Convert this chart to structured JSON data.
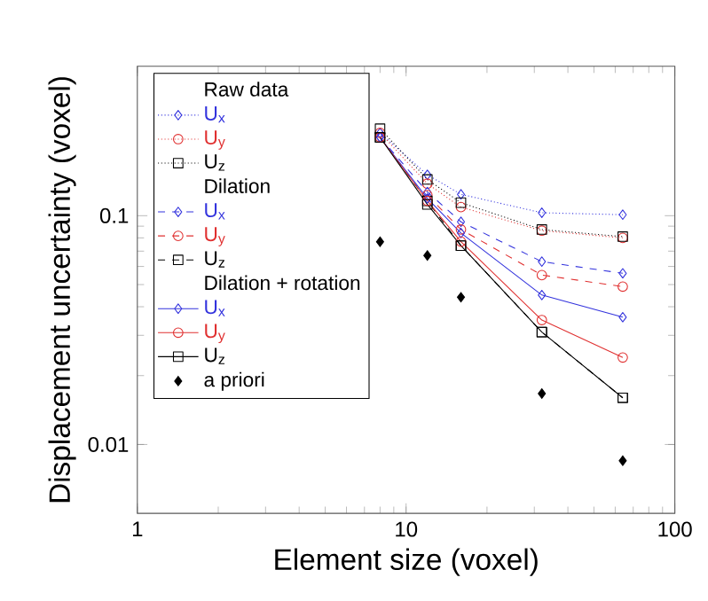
{
  "chart_data": {
    "type": "line",
    "xlabel": "Element size (voxel)",
    "ylabel": "Displacement uncertainty (voxel)",
    "log": "xy",
    "legend": "top left",
    "annotations": [
      "Raw data",
      "Dilation",
      "Dilation + rotation"
    ],
    "x": [
      8,
      12,
      16,
      32,
      64
    ],
    "xlim": [
      1,
      100
    ],
    "xticks": [
      1,
      10,
      100
    ],
    "ylim": [
      0.005,
      0.45
    ],
    "yticks": [
      0.01,
      0.1
    ],
    "series": [
      {
        "name": "U$_{x}$",
        "color": "#3333dd",
        "line_style": "dotted",
        "marker": "diamond",
        "values": [
          0.23,
          0.151,
          0.124,
          0.103,
          0.101
        ]
      },
      {
        "name": "U$_{y}$",
        "color": "#e03030",
        "line_style": "dotted",
        "marker": "circle",
        "values": [
          0.23,
          0.138,
          0.109,
          0.086,
          0.08
        ]
      },
      {
        "name": "U$_{z}$",
        "color": "#000000",
        "line_style": "dotted",
        "marker": "square",
        "values": [
          0.24,
          0.144,
          0.114,
          0.087,
          0.081
        ]
      },
      {
        "name": "U$_{x}$",
        "color": "#3333dd",
        "line_style": "dashed",
        "marker": "diamond",
        "values": [
          0.22,
          0.127,
          0.094,
          0.063,
          0.056
        ]
      },
      {
        "name": "U$_{y}$",
        "color": "#e03030",
        "line_style": "dashed",
        "marker": "circle",
        "values": [
          null,
          0.123,
          0.087,
          0.055,
          0.049
        ]
      },
      {
        "name": "U$_{z}$",
        "color": "#000000",
        "line_style": "dashed",
        "marker": "square",
        "values": [
          0.22,
          0.116,
          0.074,
          0.031,
          0.016
        ]
      },
      {
        "name": "U$_{x}$",
        "color": "#3333dd",
        "line_style": "solid",
        "marker": "diamond",
        "values": [
          0.22,
          0.119,
          0.084,
          0.045,
          0.036
        ]
      },
      {
        "name": "U$_{y}$",
        "color": "#e03030",
        "line_style": "solid",
        "marker": "circle",
        "values": [
          0.22,
          0.116,
          0.077,
          0.035,
          0.024
        ]
      },
      {
        "name": "U$_{z}$",
        "color": "#000000",
        "line_style": "solid",
        "marker": "square",
        "values": [
          0.22,
          0.112,
          0.074,
          0.031,
          0.016
        ]
      },
      {
        "name": "a priori",
        "type": "scatter",
        "color": "#000000",
        "marker": "diamond",
        "values": [
          0.077,
          0.067,
          0.044,
          0.0167,
          0.0085
        ]
      }
    ]
  }
}
